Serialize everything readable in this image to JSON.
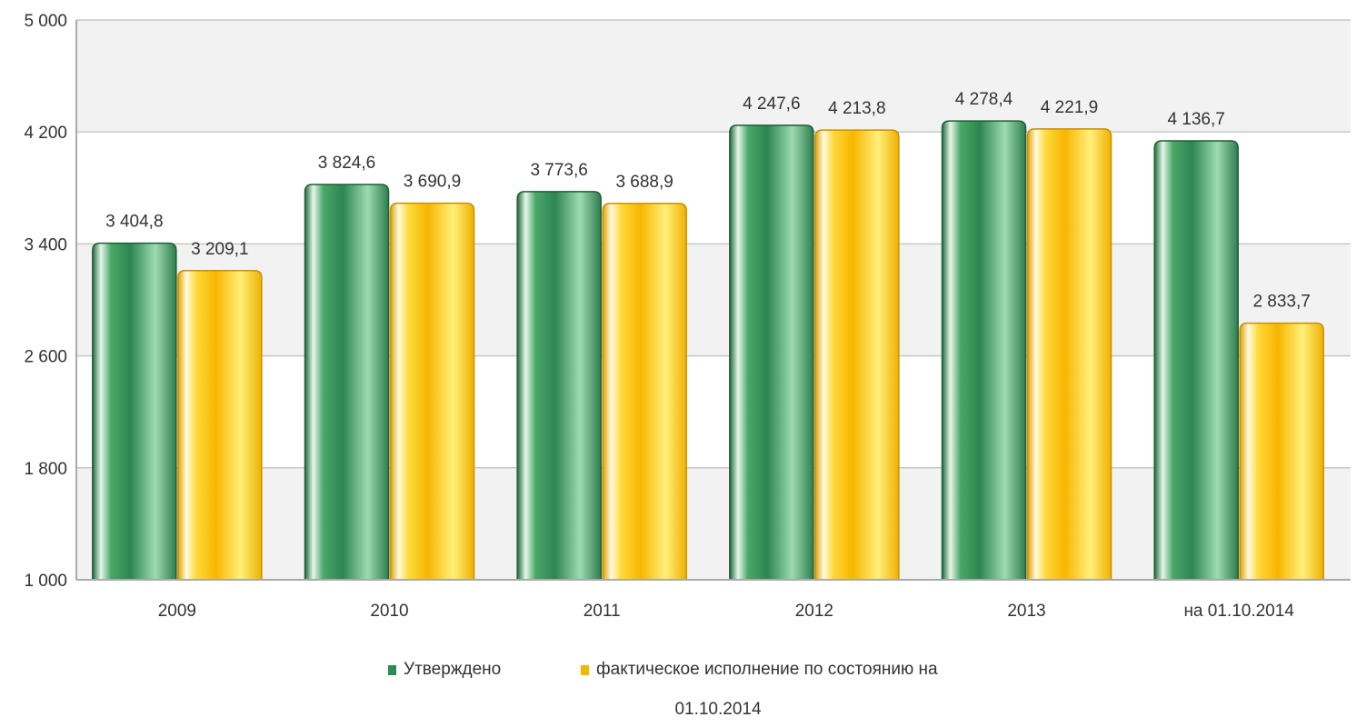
{
  "chart_data": {
    "type": "bar",
    "categories": [
      "2009",
      "2010",
      "2011",
      "2012",
      "2013",
      "на 01.10.2014"
    ],
    "series": [
      {
        "name": "Утверждено",
        "values": [
          3404.8,
          3824.6,
          3773.6,
          4247.6,
          4278.4,
          4136.7
        ],
        "labels": [
          "3 404,8",
          "3 824,6",
          "3 773,6",
          "4 247,6",
          "4 278,4",
          "4 136,7"
        ],
        "color": "#2e8b57"
      },
      {
        "name": "фактическое исполнение по состоянию на 01.10.2014",
        "legend_lines": [
          "фактическое исполнение по состоянию на",
          "01.10.2014"
        ],
        "values": [
          3209.1,
          3690.9,
          3688.9,
          4213.8,
          4221.9,
          2833.7
        ],
        "labels": [
          "3 209,1",
          "3 690,9",
          "3 688,9",
          "4 213,8",
          "4 221,9",
          "2 833,7"
        ],
        "color": "#f5b800"
      }
    ],
    "y_ticks": [
      1000,
      1800,
      2600,
      3400,
      4200,
      5000
    ],
    "y_tick_labels": [
      "1 000",
      "1 800",
      "2 600",
      "3 400",
      "4 200",
      "5 000"
    ],
    "ylim": [
      1000,
      5000
    ],
    "grid": true,
    "legend_position": "bottom"
  }
}
